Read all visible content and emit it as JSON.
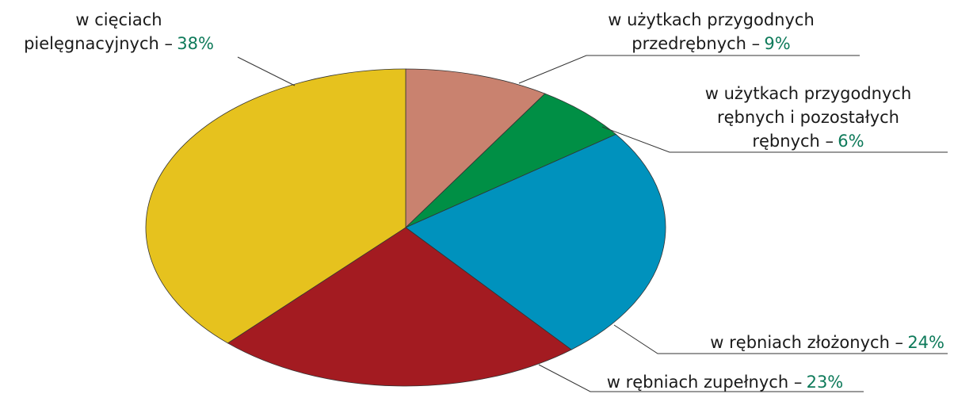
{
  "chart_data": {
    "type": "pie",
    "categories": [
      "w użytkach przygodnych\nprzedrębnych –",
      "w użytkach przygodnych\nrębnych i pozostałych\nrębnych –",
      "w rębniach złożonych –",
      "w rębniach zupełnych –",
      "w cięciach\npielęgnacyjnych –"
    ],
    "values": [
      9,
      6,
      24,
      23,
      38
    ],
    "value_labels": [
      "9%",
      "6%",
      "24%",
      "23%",
      "38%"
    ],
    "colors": [
      "#c9826f",
      "#008f45",
      "#0092bd",
      "#a31b21",
      "#e6c21e"
    ]
  }
}
